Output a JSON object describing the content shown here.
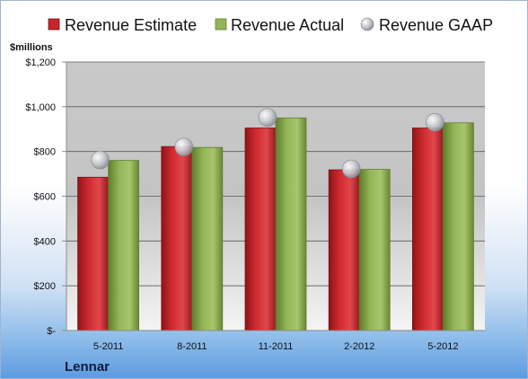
{
  "chart_data": {
    "type": "bar",
    "company": "Lennar",
    "unit_label": "$millions",
    "categories": [
      "5-2011",
      "8-2011",
      "11-2011",
      "2-2012",
      "5-2012"
    ],
    "series": [
      {
        "name": "Revenue Estimate",
        "kind": "bar",
        "color": "#c8262c",
        "values": [
          685,
          822,
          905,
          718,
          905
        ]
      },
      {
        "name": "Revenue Actual",
        "kind": "bar",
        "color": "#93b556",
        "values": [
          760,
          818,
          950,
          720,
          928
        ]
      },
      {
        "name": "Revenue GAAP",
        "kind": "marker",
        "color": "#c9cbd0",
        "values": [
          762,
          820,
          952,
          722,
          930
        ]
      }
    ],
    "y_ticks": [
      "$-",
      "$200",
      "$400",
      "$600",
      "$800",
      "$1,000",
      "$1,200"
    ],
    "ylim": [
      0,
      1200
    ],
    "legend_position": "top",
    "grid": true
  }
}
